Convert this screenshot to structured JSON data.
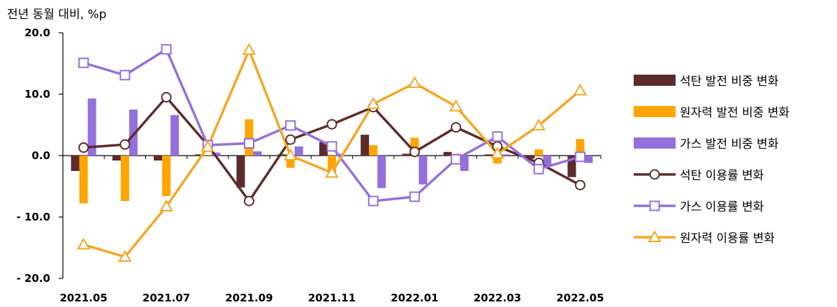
{
  "chart_data": {
    "type": "bar+line",
    "ylabel": "전년 동월 대비, %p",
    "ylim": [
      -20,
      20
    ],
    "yticks": [
      20,
      10,
      0,
      -10,
      -20
    ],
    "ytick_labels": [
      "20.0",
      "10.0",
      "0.0",
      "- 10.0",
      "- 20.0"
    ],
    "x": [
      "2021.05",
      "2021.06",
      "2021.07",
      "2021.08",
      "2021.09",
      "2021.10",
      "2021.11",
      "2021.12",
      "2022.01",
      "2022.02",
      "2022.03",
      "2022.04",
      "2022.05"
    ],
    "x_tick_labels": [
      "2021.05",
      "2021.07",
      "2021.09",
      "2021.11",
      "2022.01",
      "2022.03",
      "2022.05"
    ],
    "bar_series": [
      {
        "name": "석탄 발전 비중 변화",
        "color": "#5c2b2b",
        "values": [
          -2.5,
          -0.8,
          -0.8,
          0.2,
          -5.2,
          0.2,
          2.2,
          3.4,
          0.3,
          0.6,
          0.2,
          -0.5,
          -3.5
        ]
      },
      {
        "name": "원자력 발전 비중 변화",
        "color": "#ffa500",
        "values": [
          -7.8,
          -7.4,
          -6.6,
          0.1,
          5.9,
          -2.0,
          -2.8,
          1.7,
          2.9,
          0.3,
          -1.3,
          1.0,
          2.7
        ]
      },
      {
        "name": "가스 발전 비중 변화",
        "color": "#9370db",
        "values": [
          9.3,
          7.5,
          6.6,
          0.5,
          0.7,
          1.5,
          0.3,
          -5.3,
          -4.7,
          -2.5,
          0.2,
          -1.8,
          -1.2
        ]
      }
    ],
    "line_series": [
      {
        "name": "석탄 이용률 변화",
        "color": "#5c2b2b",
        "marker": "circle",
        "values": [
          1.3,
          1.8,
          9.5,
          1.7,
          -7.4,
          2.6,
          5.1,
          7.9,
          0.6,
          4.6,
          1.5,
          -1.2,
          -4.8
        ]
      },
      {
        "name": "가스 이용률 변화",
        "color": "#9370db",
        "marker": "square",
        "values": [
          15.1,
          13.1,
          17.3,
          1.7,
          2.0,
          4.9,
          1.5,
          -7.4,
          -6.7,
          -0.6,
          3.1,
          -2.2,
          -0.2
        ]
      },
      {
        "name": "원자력 이용률 변화",
        "color": "#f5a623",
        "marker": "triangle",
        "values": [
          -14.5,
          -16.5,
          -8.3,
          1.4,
          17.2,
          0.0,
          -2.8,
          8.4,
          11.8,
          8.0,
          0.3,
          4.9,
          10.6
        ]
      }
    ]
  }
}
